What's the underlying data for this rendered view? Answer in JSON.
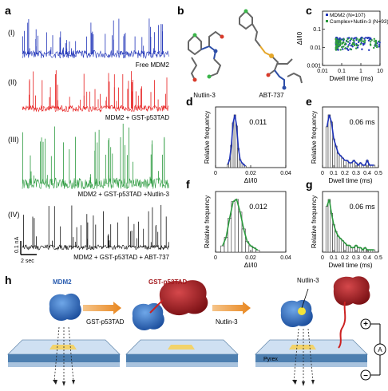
{
  "panel_labels": {
    "a": "a",
    "b": "b",
    "c": "c",
    "d": "d",
    "e": "e",
    "f": "f",
    "g": "g",
    "h": "h"
  },
  "traces": [
    {
      "roman": "(I)",
      "label": "Free MDM2",
      "color": "#1f33b8"
    },
    {
      "roman": "(II)",
      "label": "MDM2 + GST-p53TAD",
      "color": "#e61c1c"
    },
    {
      "roman": "(III)",
      "label": "MDM2 + GST-p53TAD +Nutlin-3",
      "color": "#2b9a3e"
    },
    {
      "roman": "(IV)",
      "label": "MDM2 + GST-p53TAD + ABT-737",
      "color": "#111111"
    }
  ],
  "scale_bar": {
    "current": "0.1 nA",
    "time": "2 sec"
  },
  "molecules": {
    "left": "Nutlin-3",
    "right": "ABT-737"
  },
  "colors": {
    "blue": "#1f33b8",
    "red": "#e61c1c",
    "green": "#2b9a3e",
    "chip": "#4d7fb0",
    "pore": "#f2d36b",
    "arrow": "#e8861f"
  },
  "chart_data": [
    {
      "id": "c",
      "type": "scatter",
      "xlabel": "Dwell time (ms)",
      "ylabel": "ΔI/I0",
      "xscale": "log",
      "yscale": "log",
      "xlim": [
        0.01,
        10
      ],
      "ylim": [
        0.001,
        1
      ],
      "xticks": [
        "0.01",
        "0.1",
        "1",
        "10"
      ],
      "yticks": [
        "0.001",
        "0.01",
        "0.1"
      ],
      "legend": "top-right",
      "series": [
        {
          "name": "MDM2 (N=107)",
          "color": "#1f33b8",
          "n": 107,
          "dwell_range": [
            0.05,
            10
          ],
          "amp_range": [
            0.007,
            0.035
          ]
        },
        {
          "name": "Complex+Nutlin-3 (N=93)",
          "color": "#2b9a3e",
          "n": 93,
          "dwell_range": [
            0.05,
            10
          ],
          "amp_range": [
            0.007,
            0.03
          ]
        }
      ]
    },
    {
      "id": "d",
      "type": "bar",
      "xlabel": "ΔI/I0",
      "ylabel": "Relative frequency",
      "xlim": [
        0,
        0.04
      ],
      "xticks": [
        "0",
        "0.02",
        "0.04"
      ],
      "annotation": "0.011",
      "fit_color": "#1f33b8",
      "x": [
        0.007,
        0.008,
        0.009,
        0.01,
        0.011,
        0.012,
        0.013,
        0.014,
        0.015,
        0.016,
        0.017
      ],
      "values": [
        0.02,
        0.05,
        0.14,
        0.28,
        0.33,
        0.26,
        0.12,
        0.05,
        0.03,
        0.02,
        0.01
      ]
    },
    {
      "id": "e",
      "type": "bar",
      "xlabel": "Dwell time (ms)",
      "ylabel": "Relative frequency",
      "xlim": [
        0,
        0.5
      ],
      "xticks": [
        "0",
        "0.1",
        "0.2",
        "0.3",
        "0.4",
        "0.5"
      ],
      "annotation": "0.06 ms",
      "fit_color": "#1f33b8",
      "x": [
        0.04,
        0.06,
        0.08,
        0.1,
        0.12,
        0.14,
        0.16,
        0.18,
        0.2,
        0.22,
        0.24,
        0.26,
        0.28,
        0.3,
        0.32,
        0.34,
        0.36,
        0.38,
        0.4,
        0.42,
        0.44,
        0.46
      ],
      "values": [
        0.17,
        0.22,
        0.19,
        0.12,
        0.09,
        0.06,
        0.05,
        0.04,
        0.03,
        0.03,
        0.02,
        0.02,
        0.03,
        0.02,
        0.01,
        0.02,
        0.01,
        0.01,
        0.03,
        0.01,
        0.01,
        0.01
      ]
    },
    {
      "id": "f",
      "type": "bar",
      "xlabel": "ΔI/I0",
      "ylabel": "Relative frequency",
      "xlim": [
        0,
        0.04
      ],
      "xticks": [
        "0",
        "0.02",
        "0.04"
      ],
      "annotation": "0.012",
      "fit_color": "#2b9a3e",
      "x": [
        0.004,
        0.006,
        0.008,
        0.01,
        0.012,
        0.014,
        0.016,
        0.018,
        0.02,
        0.022,
        0.024
      ],
      "values": [
        0.03,
        0.07,
        0.16,
        0.24,
        0.25,
        0.19,
        0.11,
        0.05,
        0.03,
        0.02,
        0.01
      ]
    },
    {
      "id": "g",
      "type": "bar",
      "xlabel": "Dwell time (ms)",
      "ylabel": "Relative frequency",
      "xlim": [
        0,
        0.5
      ],
      "xticks": [
        "0",
        "0.1",
        "0.2",
        "0.3",
        "0.4",
        "0.5"
      ],
      "annotation": "0.06 ms",
      "fit_color": "#2b9a3e",
      "x": [
        0.04,
        0.06,
        0.08,
        0.1,
        0.12,
        0.14,
        0.16,
        0.18,
        0.2,
        0.22,
        0.24,
        0.26,
        0.28,
        0.3,
        0.32,
        0.34,
        0.36,
        0.38,
        0.4,
        0.42,
        0.44,
        0.46
      ],
      "values": [
        0.2,
        0.23,
        0.17,
        0.12,
        0.09,
        0.07,
        0.06,
        0.05,
        0.04,
        0.03,
        0.03,
        0.02,
        0.02,
        0.03,
        0.02,
        0.02,
        0.01,
        0.02,
        0.01,
        0.01,
        0.01,
        0.01
      ]
    }
  ],
  "schematic": {
    "mdm2": "MDM2",
    "gst": "GST-p53TAD",
    "step1": "GST-p53TAD",
    "step2": "Nutlin-3",
    "nutlin": "Nutlin-3",
    "pyrex": "Pyrex",
    "plus": "+",
    "minus": "−",
    "ammeter": "A"
  }
}
